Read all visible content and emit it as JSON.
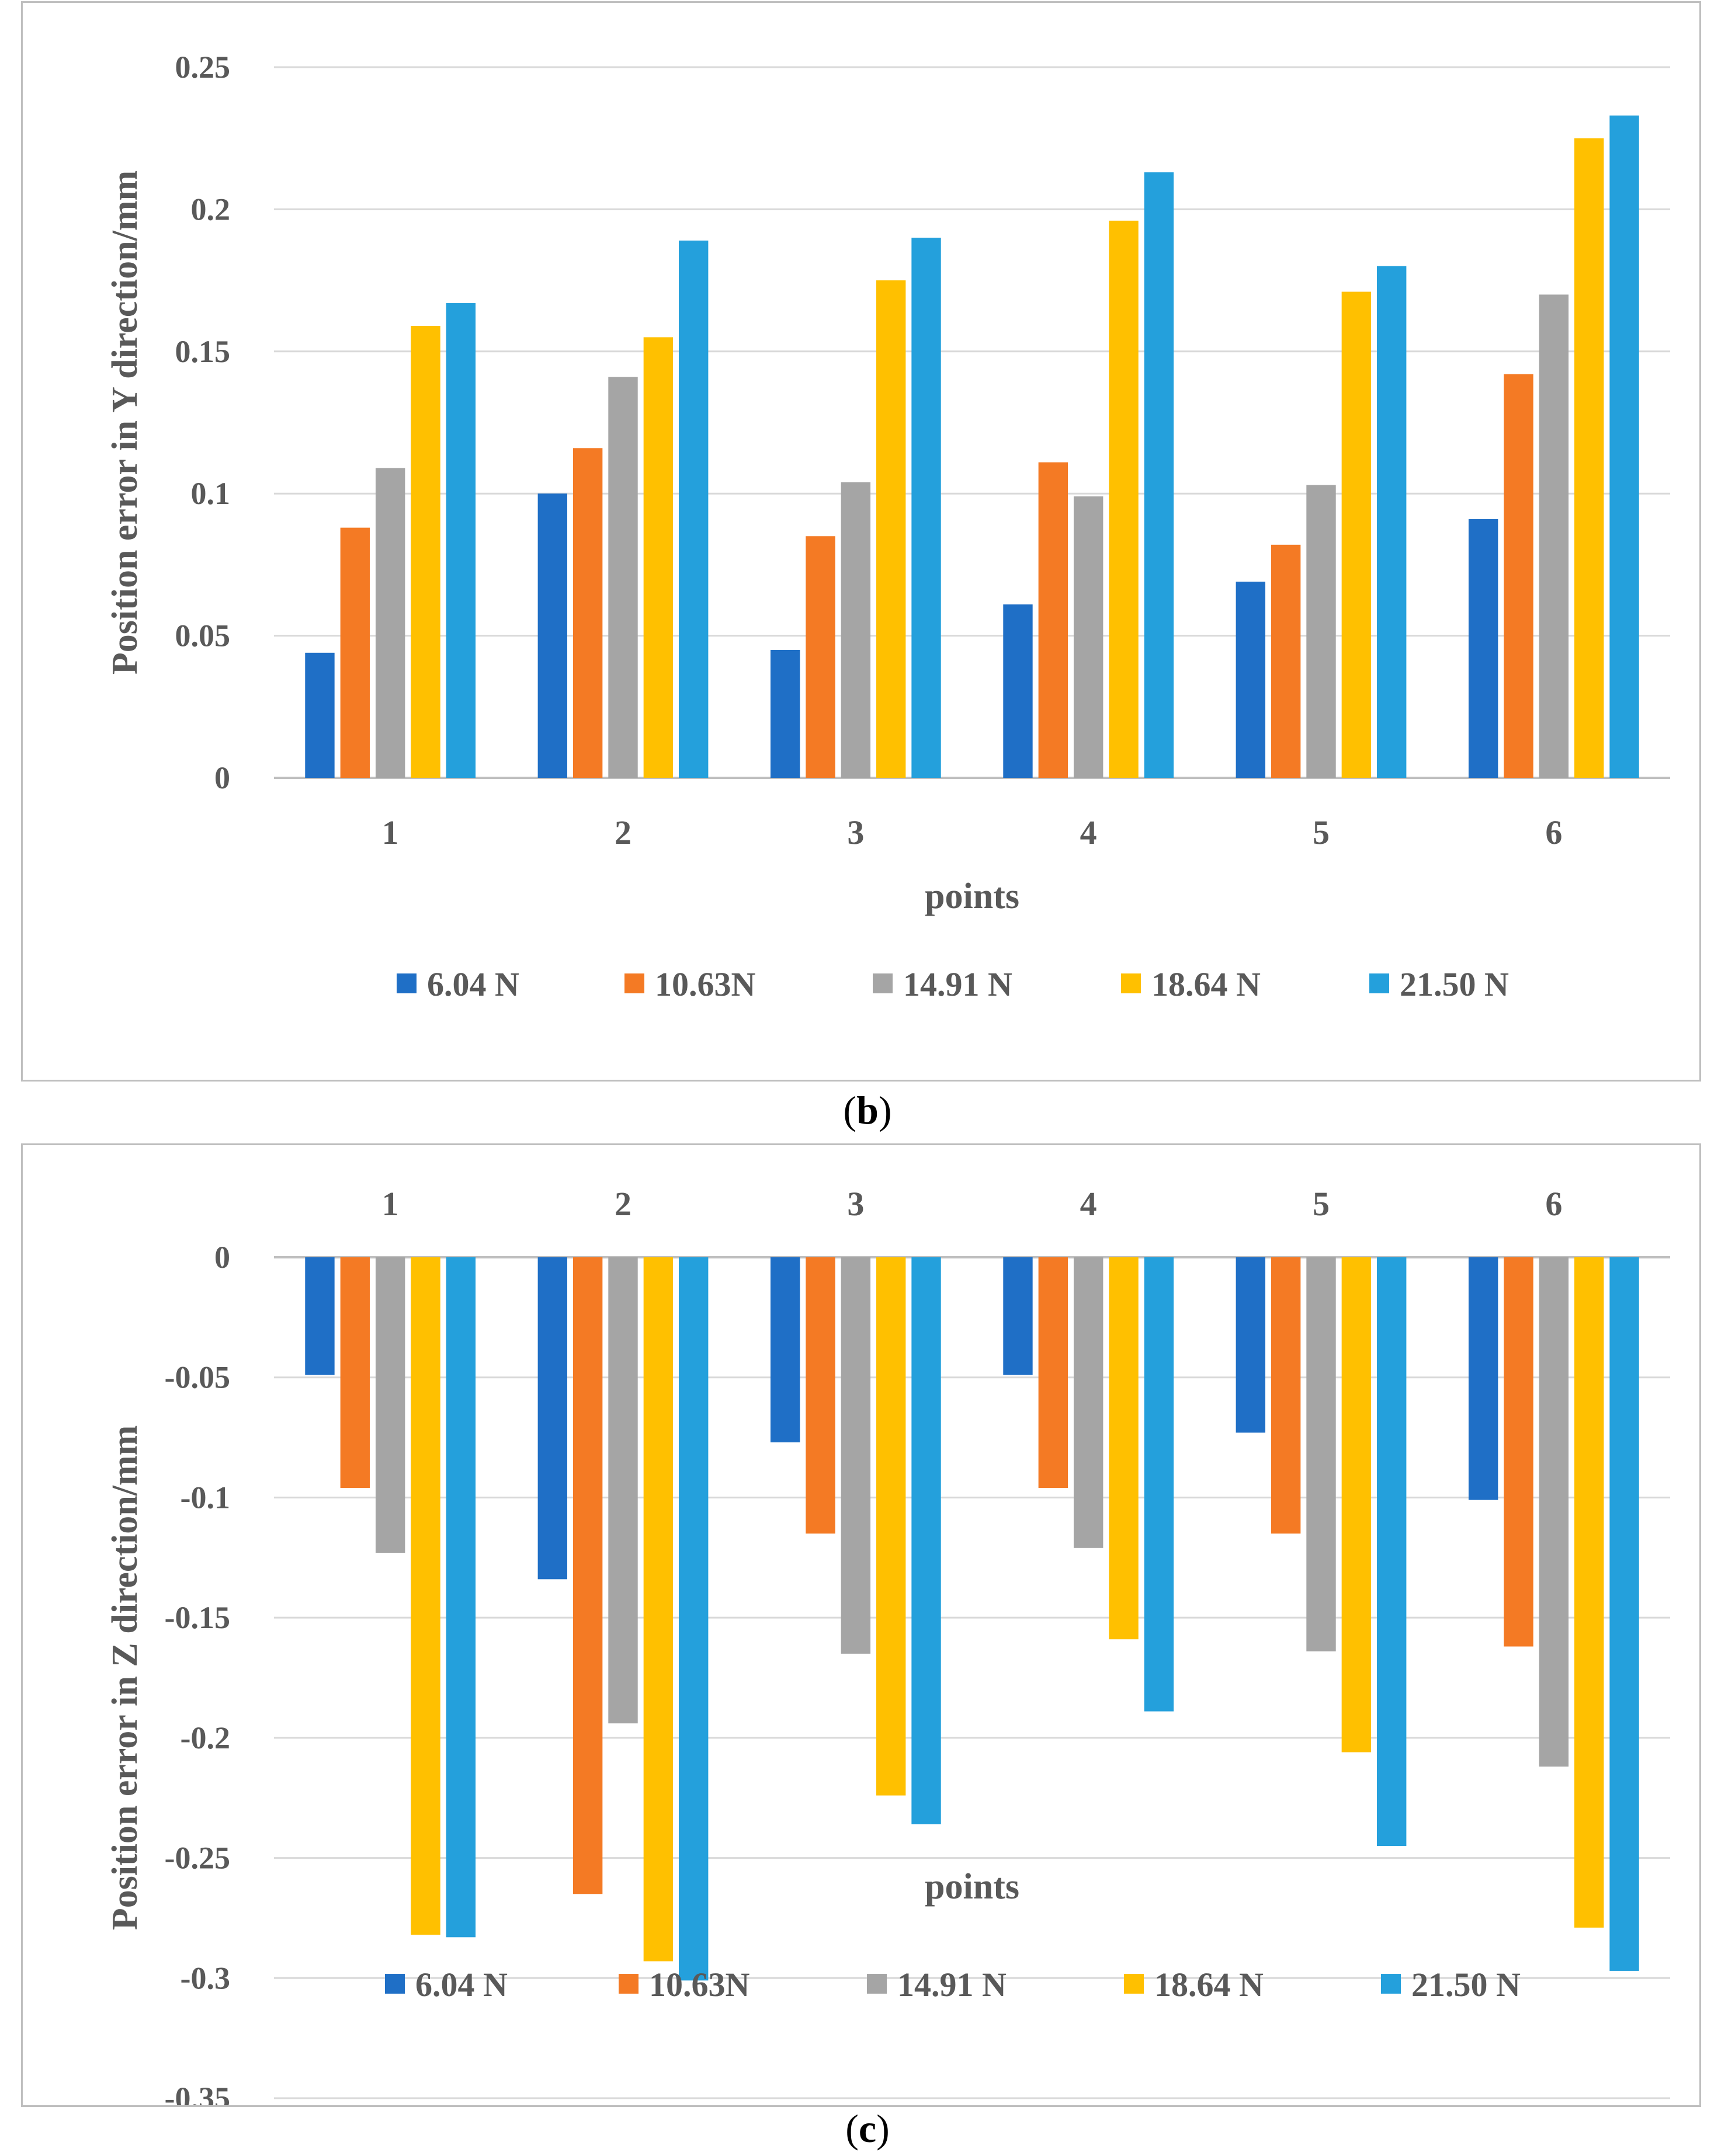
{
  "colors": {
    "series": [
      "#1f6fc6",
      "#f47a24",
      "#a5a5a5",
      "#ffc000",
      "#24a0dc"
    ],
    "grid": "#d9d9d9",
    "text": "#595959"
  },
  "captions": {
    "b": {
      "open": "(",
      "letter": "b",
      "close": ")"
    },
    "c": {
      "open": "(",
      "letter": "c",
      "close": ")"
    }
  },
  "chart_data": [
    {
      "type": "bar",
      "panel": "b",
      "categories": [
        "1",
        "2",
        "3",
        "4",
        "5",
        "6"
      ],
      "xlabel": "points",
      "ylabel": "Position error in Y direction/mm",
      "ylim": [
        0,
        0.25
      ],
      "yticks": [
        0,
        0.05,
        0.1,
        0.15,
        0.2,
        0.25
      ],
      "ytick_labels": [
        "0",
        "0.05",
        "0.1",
        "0.15",
        "0.2",
        "0.25"
      ],
      "grid": true,
      "legend_position": "bottom",
      "series": [
        {
          "name": "6.04 N",
          "values": [
            0.044,
            0.1,
            0.045,
            0.061,
            0.069,
            0.091
          ]
        },
        {
          "name": "10.63N",
          "values": [
            0.088,
            0.116,
            0.085,
            0.111,
            0.082,
            0.142
          ]
        },
        {
          "name": "14.91 N",
          "values": [
            0.109,
            0.141,
            0.104,
            0.099,
            0.103,
            0.17
          ]
        },
        {
          "name": "18.64 N",
          "values": [
            0.159,
            0.155,
            0.175,
            0.196,
            0.171,
            0.225
          ]
        },
        {
          "name": "21.50 N",
          "values": [
            0.167,
            0.189,
            0.19,
            0.213,
            0.18,
            0.233
          ]
        }
      ]
    },
    {
      "type": "bar",
      "panel": "c",
      "categories": [
        "1",
        "2",
        "3",
        "4",
        "5",
        "6"
      ],
      "xlabel": "points",
      "ylabel": "Position error in Z direction/mm",
      "ylim": [
        -0.35,
        0
      ],
      "yticks": [
        0,
        -0.05,
        -0.1,
        -0.15,
        -0.2,
        -0.25,
        -0.3,
        -0.35
      ],
      "ytick_labels": [
        "0",
        "-0.05",
        "-0.1",
        "-0.15",
        "-0.2",
        "-0.25",
        "-0.3",
        "-0.35"
      ],
      "grid": true,
      "legend_position": "bottom",
      "category_labels_position": "top",
      "series": [
        {
          "name": "6.04 N",
          "values": [
            -0.049,
            -0.134,
            -0.077,
            -0.049,
            -0.073,
            -0.101
          ]
        },
        {
          "name": "10.63N",
          "values": [
            -0.096,
            -0.265,
            -0.115,
            -0.096,
            -0.115,
            -0.162
          ]
        },
        {
          "name": "14.91 N",
          "values": [
            -0.123,
            -0.194,
            -0.165,
            -0.121,
            -0.164,
            -0.212
          ]
        },
        {
          "name": "18.64 N",
          "values": [
            -0.282,
            -0.293,
            -0.224,
            -0.159,
            -0.206,
            -0.279
          ]
        },
        {
          "name": "21.50 N",
          "values": [
            -0.283,
            -0.301,
            -0.236,
            -0.189,
            -0.245,
            -0.297
          ]
        }
      ]
    }
  ]
}
